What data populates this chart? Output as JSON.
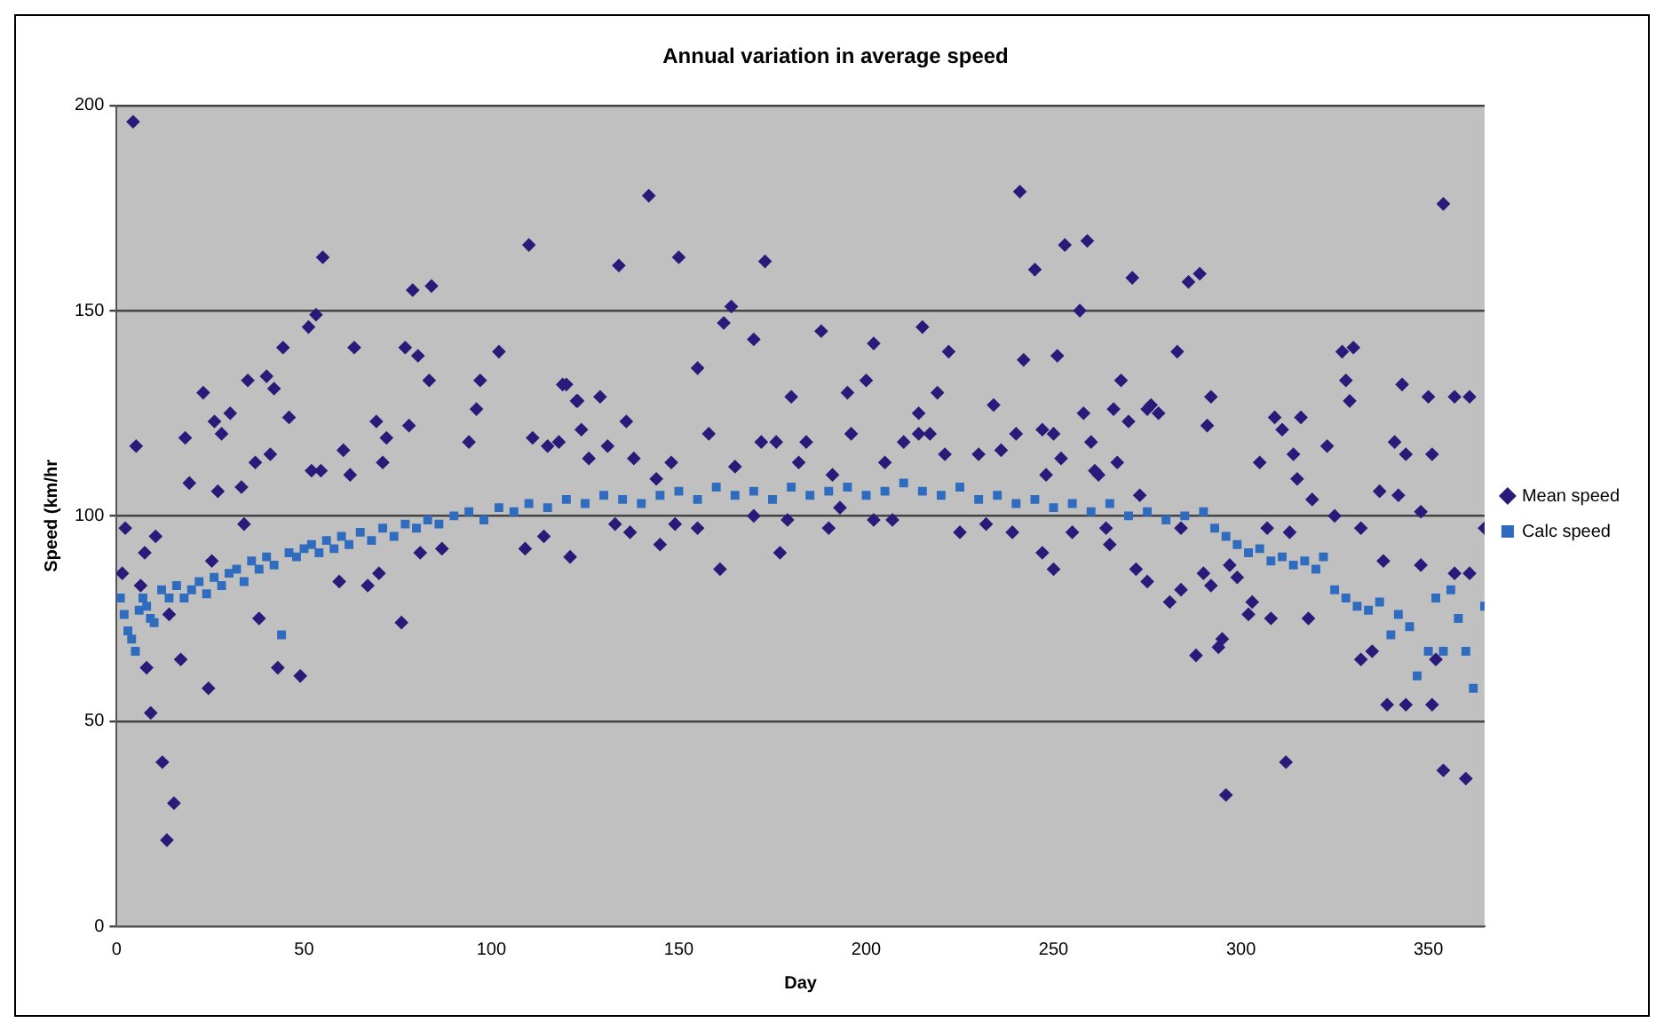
{
  "chart_data": {
    "type": "scatter",
    "title": "Annual variation in average speed",
    "xlabel": "Day",
    "ylabel": "Speed (km/hr",
    "xlim": [
      0,
      365
    ],
    "xticks": [
      0,
      50,
      100,
      150,
      200,
      250,
      300,
      350
    ],
    "ylim": [
      0,
      200
    ],
    "yticks": [
      0,
      50,
      100,
      150,
      200
    ],
    "grid": "y",
    "legend": "right",
    "series": [
      {
        "name": "Mean speed",
        "color": "#2a1a7a",
        "marker": "diamond",
        "x": [
          4.4,
          5.2,
          2.3,
          1.5,
          7.5,
          10.4,
          6.4,
          8,
          9.1,
          12.2,
          15.3,
          13.4,
          14,
          17.1,
          18.3,
          19.4,
          23.1,
          26.1,
          28,
          30.3,
          27,
          24.5,
          25.4,
          35,
          40,
          42,
          44.4,
          46,
          37,
          41,
          33.3,
          34,
          38,
          43,
          49,
          51.2,
          53.2,
          55,
          52,
          54.5,
          59.4,
          60.5,
          62.3,
          63.4,
          67,
          69.3,
          72,
          71,
          70,
          76,
          77,
          79,
          84,
          80.4,
          78,
          83.4,
          81,
          86.8,
          94,
          96,
          97,
          102,
          110,
          111,
          115,
          118,
          119,
          122.7,
          109,
          121,
          114,
          142,
          134,
          150,
          173,
          164,
          162,
          170,
          155,
          188,
          202,
          215,
          222,
          241,
          245,
          242,
          123,
          129,
          136,
          120,
          158,
          180,
          195,
          200,
          214,
          219,
          234,
          124,
          126,
          131,
          138,
          144,
          148,
          165,
          172,
          176,
          182,
          184,
          191,
          196,
          205,
          210,
          214,
          217,
          221,
          230,
          236,
          240,
          133,
          137,
          145,
          149,
          155,
          161,
          170,
          177,
          179,
          190,
          193,
          202,
          207,
          225,
          232,
          239,
          253,
          259,
          271,
          286,
          289,
          257,
          251,
          283,
          268,
          266,
          270,
          275,
          276,
          278,
          258,
          292,
          291,
          247,
          250,
          260,
          252,
          261,
          262,
          267,
          248,
          305,
          309,
          311,
          314,
          316,
          315,
          323,
          319,
          327,
          330,
          328,
          329,
          343,
          350,
          357,
          361,
          341,
          344,
          351,
          337,
          342,
          348,
          365,
          273,
          255,
          264,
          247,
          250,
          265,
          272,
          275,
          284,
          290,
          292,
          281,
          284,
          297,
          299,
          307,
          313,
          302,
          303,
          308,
          318,
          325,
          332,
          338,
          348,
          357,
          361,
          288,
          294,
          295,
          332,
          335,
          339,
          344,
          351,
          352,
          312,
          296,
          354,
          360,
          354
        ],
        "values": [
          196,
          117,
          97,
          86,
          91,
          95,
          83,
          63,
          52,
          40,
          30,
          21,
          76,
          65,
          119,
          108,
          130,
          123,
          120,
          125,
          106,
          58,
          89,
          133,
          134,
          131,
          141,
          124,
          113,
          115,
          107,
          98,
          75,
          63,
          61,
          146,
          149,
          163,
          111,
          111,
          84,
          116,
          110,
          141,
          83,
          123,
          119,
          113,
          86,
          74,
          141,
          155,
          156,
          139,
          122,
          133,
          91,
          92,
          118,
          126,
          133,
          140,
          166,
          119,
          117,
          118,
          132,
          128,
          92,
          90,
          95,
          178,
          161,
          163,
          162,
          151,
          147,
          143,
          136,
          145,
          142,
          146,
          140,
          179,
          160,
          138,
          128,
          129,
          123,
          132,
          120,
          129,
          130,
          133,
          125,
          130,
          127,
          121,
          114,
          117,
          114,
          109,
          113,
          112,
          118,
          118,
          113,
          118,
          110,
          120,
          113,
          118,
          120,
          120,
          115,
          115,
          116,
          120,
          98,
          96,
          93,
          98,
          97,
          87,
          100,
          91,
          99,
          97,
          102,
          99,
          99,
          96,
          98,
          96,
          166,
          167,
          158,
          157,
          159,
          150,
          139,
          140,
          133,
          126,
          123,
          126,
          127,
          125,
          125,
          129,
          122,
          121,
          120,
          118,
          114,
          111,
          110,
          113,
          110,
          113,
          124,
          121,
          115,
          124,
          109,
          117,
          104,
          140,
          141,
          133,
          128,
          132,
          129,
          129,
          129,
          118,
          115,
          115,
          106,
          105,
          101,
          97,
          105,
          96,
          97,
          91,
          87,
          93,
          87,
          84,
          97,
          86,
          83,
          79,
          82,
          88,
          85,
          97,
          96,
          76,
          79,
          75,
          75,
          100,
          97,
          89,
          88,
          86,
          86,
          66,
          68,
          70,
          65,
          67,
          54,
          54,
          54,
          65,
          40,
          32,
          38,
          36,
          176
        ]
      },
      {
        "name": "Calc speed",
        "color": "#2f6cc0",
        "marker": "square",
        "x": [
          1,
          2,
          3,
          4,
          5,
          6,
          7,
          8,
          9,
          10,
          12,
          14,
          16,
          18,
          20,
          22,
          24,
          26,
          28,
          30,
          32,
          34,
          36,
          38,
          40,
          42,
          44,
          46,
          48,
          50,
          52,
          54,
          56,
          58,
          60,
          62,
          65,
          68,
          71,
          74,
          77,
          80,
          83,
          86,
          90,
          94,
          98,
          102,
          106,
          110,
          115,
          120,
          125,
          130,
          135,
          140,
          145,
          150,
          155,
          160,
          165,
          170,
          175,
          180,
          185,
          190,
          195,
          200,
          205,
          210,
          215,
          220,
          225,
          230,
          235,
          240,
          245,
          250,
          255,
          260,
          265,
          270,
          275,
          280,
          285,
          290,
          293,
          296,
          299,
          302,
          305,
          308,
          311,
          314,
          317,
          320,
          322,
          325,
          328,
          331,
          334,
          337,
          340,
          342,
          345,
          347,
          350,
          352,
          354,
          356,
          358,
          360,
          362,
          365
        ],
        "values": [
          80,
          76,
          72,
          70,
          67,
          77,
          80,
          78,
          75,
          74,
          82,
          80,
          83,
          80,
          82,
          84,
          81,
          85,
          83,
          86,
          87,
          84,
          89,
          87,
          90,
          88,
          71,
          91,
          90,
          92,
          93,
          91,
          94,
          92,
          95,
          93,
          96,
          94,
          97,
          95,
          98,
          97,
          99,
          98,
          100,
          101,
          99,
          102,
          101,
          103,
          102,
          104,
          103,
          105,
          104,
          103,
          105,
          106,
          104,
          107,
          105,
          106,
          104,
          107,
          105,
          106,
          107,
          105,
          106,
          108,
          106,
          105,
          107,
          104,
          105,
          103,
          104,
          102,
          103,
          101,
          103,
          100,
          101,
          99,
          100,
          101,
          97,
          95,
          93,
          91,
          92,
          89,
          90,
          88,
          89,
          87,
          90,
          82,
          80,
          78,
          77,
          79,
          71,
          76,
          73,
          61,
          67,
          80,
          67,
          82,
          75,
          67,
          58,
          78
        ]
      }
    ]
  }
}
